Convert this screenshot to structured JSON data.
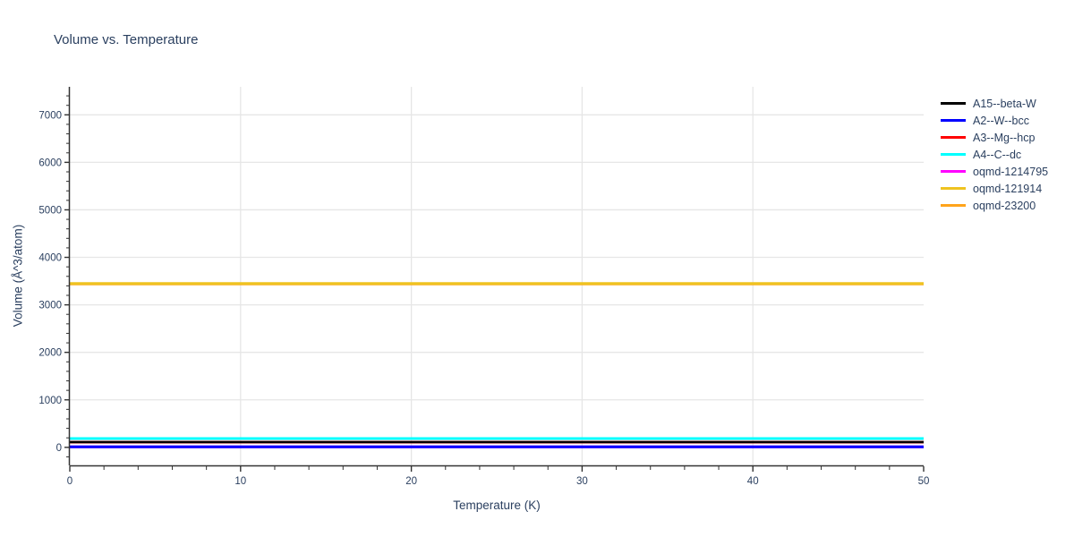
{
  "chart_data": {
    "type": "line",
    "title": "Volume vs. Temperature",
    "xlabel": "Temperature (K)",
    "ylabel": "Volume (Å^3/atom)",
    "xlim": [
      0,
      50
    ],
    "ylim": [
      -380,
      7590
    ],
    "x_ticks": [
      0,
      10,
      20,
      30,
      40,
      50
    ],
    "y_ticks": [
      0,
      1000,
      2000,
      3000,
      4000,
      5000,
      6000,
      7000
    ],
    "x_minor_step": 2,
    "y_minor_step": 200,
    "grid": true,
    "legend_position": "outside-right-top",
    "draw_order": "reversed-legend",
    "x": [
      0,
      50
    ],
    "series": [
      {
        "name": "A15--beta-W",
        "color": "#000000",
        "values": [
          110,
          110
        ]
      },
      {
        "name": "A2--W--bcc",
        "color": "#0000ff",
        "values": [
          10,
          10
        ]
      },
      {
        "name": "A3--Mg--hcp",
        "color": "#ff0000",
        "values": [
          110,
          110
        ]
      },
      {
        "name": "A4--C--dc",
        "color": "#00ffff",
        "values": [
          185,
          185
        ]
      },
      {
        "name": "oqmd-1214795",
        "color": "#ff00ff",
        "values": [
          12,
          12
        ]
      },
      {
        "name": "oqmd-121914",
        "color": "#efc320",
        "values": [
          3450,
          3450
        ]
      },
      {
        "name": "oqmd-23200",
        "color": "#ffa41b",
        "values": [
          3440,
          3440
        ]
      }
    ],
    "colors": {
      "text": "#2a3f5f",
      "axis": "#333333",
      "grid": "#e6e6e6",
      "background": "#ffffff"
    }
  }
}
